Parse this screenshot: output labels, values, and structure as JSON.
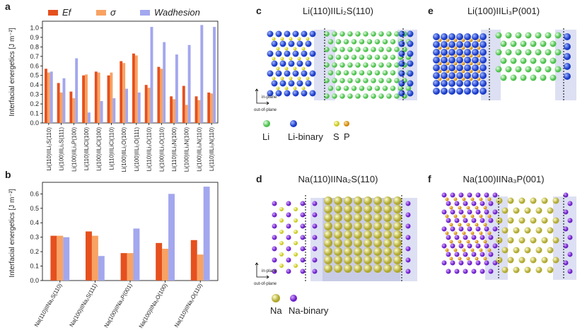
{
  "chart_data": [
    {
      "type": "bar",
      "label": "a",
      "ylabel": "Interfacial energetics [J m⁻²]",
      "categories": [
        "Li(110)IILi₂S(110)",
        "Li(100)IILi₂S(111)",
        "Li(100)IILi₃P(100)",
        "Li(110)IILiCl(100)",
        "Li(100)IILiCl(100)",
        "Li(110)IILiCl(110)",
        "Li(100)IILi₂O(100)",
        "Li(100)IILi₂O(111)",
        "Li(110)IILi₂O(110)",
        "Li(100)IILi₂O(110)",
        "Li(110)IILi₃N(100)",
        "Li(100)IILi₃N(100)",
        "Li(100)IILi₃N(110)",
        "Li(110)IILi₃N(110)"
      ],
      "series": [
        {
          "name": "Ef",
          "color": "#e5501e",
          "values": [
            0.57,
            0.42,
            0.33,
            0.5,
            0.54,
            0.5,
            0.65,
            0.73,
            0.4,
            0.59,
            0.28,
            0.39,
            0.28,
            0.32
          ]
        },
        {
          "name": "σ",
          "color": "#f8a263",
          "values": [
            0.53,
            0.32,
            0.26,
            0.51,
            0.53,
            0.53,
            0.63,
            0.71,
            0.37,
            0.57,
            0.25,
            0.19,
            0.24,
            0.31
          ]
        },
        {
          "name": "Wadhesion",
          "color": "#a3a7ee",
          "values": [
            0.54,
            0.47,
            0.68,
            0.11,
            0.23,
            0.26,
            0.36,
            0.32,
            1.01,
            0.85,
            0.72,
            0.82,
            1.03,
            1.01
          ]
        }
      ],
      "ylim": [
        0,
        1.07
      ],
      "yticks": [
        {
          "value": 0,
          "label": "0.0"
        },
        0.1,
        0.2,
        0.3,
        0.4,
        0.5,
        0.6,
        0.7,
        0.8,
        0.9,
        {
          "value": 1,
          "label": "1.0"
        }
      ]
    },
    {
      "type": "bar",
      "label": "b",
      "ylabel": "Interfacial energetics [J m⁻²]",
      "categories": [
        "Na(110)IINa₂S(110)",
        "Na(100)IINa₂S(111)",
        "Na(100)IINa₃P(001)",
        "Na(100)IINa₂O(100)",
        "Na(110)IINa₂O(110)"
      ],
      "series": [
        {
          "name": "Ef",
          "color": "#e5501e",
          "values": [
            0.31,
            0.34,
            0.19,
            0.26,
            0.28
          ]
        },
        {
          "name": "σ",
          "color": "#f8a263",
          "values": [
            0.31,
            0.31,
            0.19,
            0.22,
            0.18
          ]
        },
        {
          "name": "Wadhesion",
          "color": "#a3a7ee",
          "values": [
            0.3,
            0.17,
            0.36,
            0.6,
            0.65
          ]
        }
      ],
      "ylim": [
        0,
        0.68
      ],
      "yticks": [
        {
          "value": 0,
          "label": "0.0"
        },
        0.1,
        0.2,
        0.3,
        0.4,
        0.5,
        0.6
      ]
    }
  ],
  "panels": [
    {
      "letter": "c",
      "title": "Li(110)IILi₂S(110)"
    },
    {
      "letter": "e",
      "title": "Li(100)IILi₃P(001)"
    },
    {
      "letter": "d",
      "title": "Na(110)IINa₂S(110)"
    },
    {
      "letter": "f",
      "title": "Na(100)IINa₃P(001)"
    }
  ],
  "legend_li": [
    "Li",
    "Li-binary",
    "S",
    "P"
  ],
  "legend_na": [
    "Na",
    "Na-binary"
  ],
  "axes_labels": {
    "in_plane": "in-plane",
    "out_of_plane": "out-of-plane"
  }
}
